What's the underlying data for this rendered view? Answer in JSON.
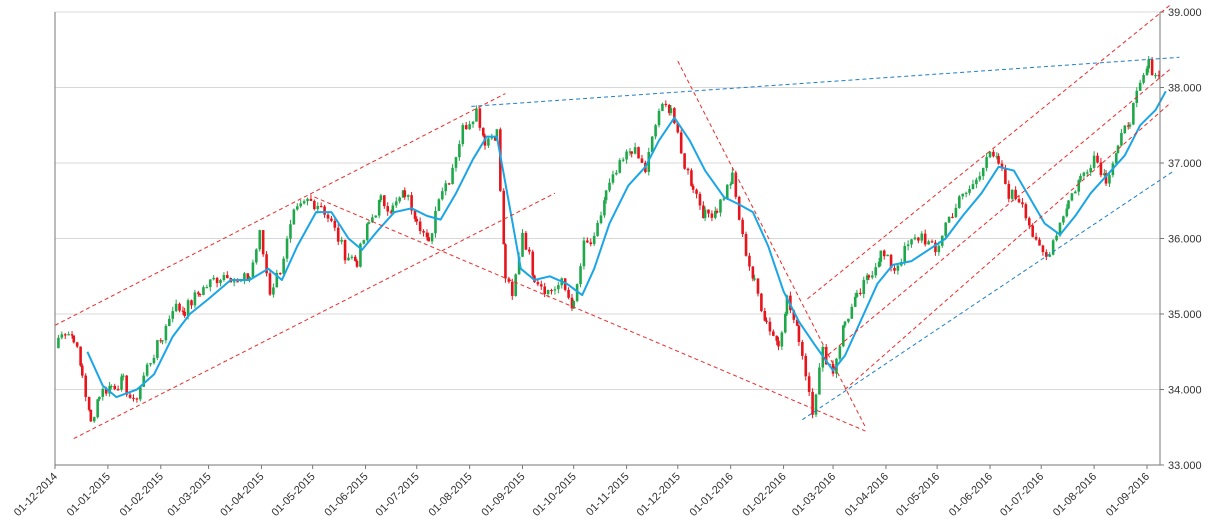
{
  "chart_data": {
    "type": "candlestick",
    "title": "",
    "xlabel": "",
    "ylabel": "",
    "ylim": [
      33.0,
      39.0
    ],
    "grid": "horizontal",
    "y_axis_side": "right",
    "x_ticks": [
      "01-12-2014",
      "01-01-2015",
      "01-02-2015",
      "01-03-2015",
      "01-04-2015",
      "01-05-2015",
      "01-06-2015",
      "01-07-2015",
      "01-08-2015",
      "01-09-2015",
      "01-10-2015",
      "01-11-2015",
      "01-12-2015",
      "01-01-2016",
      "01-02-2016",
      "01-03-2016",
      "01-04-2016",
      "01-05-2016",
      "01-06-2016",
      "01-07-2016",
      "01-08-2016",
      "01-09-2016"
    ],
    "y_ticks": [
      "33.000",
      "34.000",
      "35.000",
      "36.000",
      "37.000",
      "38.000",
      "39.000"
    ],
    "colors": {
      "up": "#1fa84a",
      "down": "#e8141b",
      "moving_average": "#1aa6e6",
      "red_trendline": "#ee2a2a",
      "blue_trendline": "#1e7fc8",
      "grid": "#d8d8d8",
      "axis": "#777777"
    },
    "price_path": [
      [
        "2014-12-01",
        34.55
      ],
      [
        "2014-12-05",
        34.8
      ],
      [
        "2014-12-12",
        34.7
      ],
      [
        "2014-12-17",
        34.2
      ],
      [
        "2014-12-22",
        33.55
      ],
      [
        "2014-12-27",
        33.95
      ],
      [
        "2015-01-03",
        34.05
      ],
      [
        "2015-01-10",
        34.1
      ],
      [
        "2015-01-16",
        33.8
      ],
      [
        "2015-01-24",
        34.3
      ],
      [
        "2015-02-02",
        34.7
      ],
      [
        "2015-02-08",
        35.1
      ],
      [
        "2015-02-15",
        35.05
      ],
      [
        "2015-02-24",
        35.3
      ],
      [
        "2015-03-04",
        35.45
      ],
      [
        "2015-03-12",
        35.55
      ],
      [
        "2015-03-18",
        35.4
      ],
      [
        "2015-03-25",
        35.5
      ],
      [
        "2015-03-31",
        36.05
      ],
      [
        "2015-04-06",
        35.3
      ],
      [
        "2015-04-12",
        35.6
      ],
      [
        "2015-04-20",
        36.3
      ],
      [
        "2015-04-28",
        36.5
      ],
      [
        "2015-05-06",
        36.45
      ],
      [
        "2015-05-12",
        36.2
      ],
      [
        "2015-05-20",
        35.8
      ],
      [
        "2015-05-27",
        35.7
      ],
      [
        "2015-06-03",
        36.2
      ],
      [
        "2015-06-10",
        36.5
      ],
      [
        "2015-06-17",
        36.4
      ],
      [
        "2015-06-24",
        36.6
      ],
      [
        "2015-07-01",
        36.3
      ],
      [
        "2015-07-08",
        35.9
      ],
      [
        "2015-07-14",
        36.6
      ],
      [
        "2015-07-20",
        36.8
      ],
      [
        "2015-07-28",
        37.45
      ],
      [
        "2015-08-05",
        37.7
      ],
      [
        "2015-08-10",
        37.3
      ],
      [
        "2015-08-17",
        37.4
      ],
      [
        "2015-08-22",
        35.5
      ],
      [
        "2015-08-26",
        35.2
      ],
      [
        "2015-09-01",
        36.1
      ],
      [
        "2015-09-08",
        35.5
      ],
      [
        "2015-09-16",
        35.3
      ],
      [
        "2015-09-24",
        35.4
      ],
      [
        "2015-10-01",
        35.1
      ],
      [
        "2015-10-07",
        35.9
      ],
      [
        "2015-10-13",
        35.95
      ],
      [
        "2015-10-20",
        36.6
      ],
      [
        "2015-10-28",
        36.95
      ],
      [
        "2015-11-04",
        37.2
      ],
      [
        "2015-11-12",
        36.9
      ],
      [
        "2015-11-20",
        37.7
      ],
      [
        "2015-11-27",
        37.75
      ],
      [
        "2015-12-03",
        37.1
      ],
      [
        "2015-12-10",
        36.7
      ],
      [
        "2015-12-17",
        36.3
      ],
      [
        "2015-12-24",
        36.4
      ],
      [
        "2016-01-02",
        36.8
      ],
      [
        "2016-01-08",
        36.0
      ],
      [
        "2016-01-15",
        35.4
      ],
      [
        "2016-01-22",
        34.9
      ],
      [
        "2016-01-29",
        34.6
      ],
      [
        "2016-02-03",
        35.2
      ],
      [
        "2016-02-10",
        34.7
      ],
      [
        "2016-02-18",
        33.75
      ],
      [
        "2016-02-24",
        34.5
      ],
      [
        "2016-03-01",
        34.25
      ],
      [
        "2016-03-08",
        34.9
      ],
      [
        "2016-03-15",
        35.2
      ],
      [
        "2016-03-22",
        35.5
      ],
      [
        "2016-03-29",
        35.8
      ],
      [
        "2016-04-06",
        35.6
      ],
      [
        "2016-04-14",
        35.9
      ],
      [
        "2016-04-22",
        36.05
      ],
      [
        "2016-04-30",
        35.8
      ],
      [
        "2016-05-06",
        36.2
      ],
      [
        "2016-05-14",
        36.5
      ],
      [
        "2016-05-22",
        36.7
      ],
      [
        "2016-05-30",
        37.1
      ],
      [
        "2016-06-06",
        37.0
      ],
      [
        "2016-06-12",
        36.6
      ],
      [
        "2016-06-20",
        36.5
      ],
      [
        "2016-06-28",
        35.9
      ],
      [
        "2016-07-04",
        35.75
      ],
      [
        "2016-07-10",
        36.1
      ],
      [
        "2016-07-17",
        36.5
      ],
      [
        "2016-07-24",
        36.8
      ],
      [
        "2016-08-01",
        37.1
      ],
      [
        "2016-08-08",
        36.8
      ],
      [
        "2016-08-15",
        37.2
      ],
      [
        "2016-08-22",
        37.6
      ],
      [
        "2016-08-28",
        38.0
      ],
      [
        "2016-09-02",
        38.3
      ],
      [
        "2016-09-08",
        38.15
      ]
    ],
    "moving_average": [
      [
        "2014-12-20",
        34.5
      ],
      [
        "2014-12-29",
        34.05
      ],
      [
        "2015-01-06",
        33.9
      ],
      [
        "2015-01-18",
        34.0
      ],
      [
        "2015-01-28",
        34.2
      ],
      [
        "2015-02-08",
        34.7
      ],
      [
        "2015-02-18",
        35.0
      ],
      [
        "2015-03-01",
        35.2
      ],
      [
        "2015-03-14",
        35.45
      ],
      [
        "2015-03-25",
        35.45
      ],
      [
        "2015-04-05",
        35.6
      ],
      [
        "2015-04-13",
        35.45
      ],
      [
        "2015-04-22",
        35.9
      ],
      [
        "2015-05-03",
        36.35
      ],
      [
        "2015-05-12",
        36.35
      ],
      [
        "2015-05-22",
        36.0
      ],
      [
        "2015-05-30",
        35.85
      ],
      [
        "2015-06-08",
        36.1
      ],
      [
        "2015-06-18",
        36.35
      ],
      [
        "2015-06-28",
        36.4
      ],
      [
        "2015-07-07",
        36.3
      ],
      [
        "2015-07-15",
        36.25
      ],
      [
        "2015-07-24",
        36.6
      ],
      [
        "2015-08-03",
        37.05
      ],
      [
        "2015-08-11",
        37.35
      ],
      [
        "2015-08-17",
        37.35
      ],
      [
        "2015-08-23",
        36.6
      ],
      [
        "2015-08-31",
        35.6
      ],
      [
        "2015-09-08",
        35.45
      ],
      [
        "2015-09-17",
        35.5
      ],
      [
        "2015-09-27",
        35.4
      ],
      [
        "2015-10-06",
        35.25
      ],
      [
        "2015-10-13",
        35.6
      ],
      [
        "2015-10-22",
        36.2
      ],
      [
        "2015-11-02",
        36.7
      ],
      [
        "2015-11-12",
        36.95
      ],
      [
        "2015-11-20",
        37.3
      ],
      [
        "2015-11-29",
        37.6
      ],
      [
        "2015-12-08",
        37.3
      ],
      [
        "2015-12-17",
        36.9
      ],
      [
        "2015-12-28",
        36.55
      ],
      [
        "2016-01-06",
        36.45
      ],
      [
        "2016-01-14",
        36.35
      ],
      [
        "2016-01-23",
        35.9
      ],
      [
        "2016-02-01",
        35.3
      ],
      [
        "2016-02-10",
        34.9
      ],
      [
        "2016-02-19",
        34.6
      ],
      [
        "2016-03-01",
        34.25
      ],
      [
        "2016-03-08",
        34.45
      ],
      [
        "2016-03-17",
        34.9
      ],
      [
        "2016-03-27",
        35.4
      ],
      [
        "2016-04-05",
        35.65
      ],
      [
        "2016-04-16",
        35.7
      ],
      [
        "2016-04-26",
        35.85
      ],
      [
        "2016-05-06",
        36.0
      ],
      [
        "2016-05-16",
        36.3
      ],
      [
        "2016-05-27",
        36.6
      ],
      [
        "2016-06-06",
        36.95
      ],
      [
        "2016-06-15",
        36.9
      ],
      [
        "2016-06-24",
        36.55
      ],
      [
        "2016-07-03",
        36.2
      ],
      [
        "2016-07-12",
        36.05
      ],
      [
        "2016-07-21",
        36.3
      ],
      [
        "2016-07-30",
        36.6
      ],
      [
        "2016-08-09",
        36.85
      ],
      [
        "2016-08-19",
        37.1
      ],
      [
        "2016-08-28",
        37.5
      ],
      [
        "2016-09-06",
        37.7
      ],
      [
        "2016-09-12",
        37.95
      ]
    ],
    "trendlines": [
      {
        "style": "red",
        "points": [
          [
            "2014-12-01",
            34.85
          ],
          [
            "2015-08-22",
            37.92
          ]
        ]
      },
      {
        "style": "red",
        "points": [
          [
            "2014-12-12",
            33.35
          ],
          [
            "2015-09-20",
            36.6
          ]
        ]
      },
      {
        "style": "red",
        "points": [
          [
            "2015-05-02",
            36.55
          ],
          [
            "2016-03-20",
            33.45
          ]
        ]
      },
      {
        "style": "red",
        "points": [
          [
            "2015-12-01",
            38.35
          ],
          [
            "2016-03-20",
            33.5
          ]
        ]
      },
      {
        "style": "red",
        "points": [
          [
            "2016-02-15",
            35.2
          ],
          [
            "2016-09-15",
            39.1
          ]
        ]
      },
      {
        "style": "red",
        "points": [
          [
            "2016-02-24",
            34.4
          ],
          [
            "2016-09-15",
            38.25
          ]
        ]
      },
      {
        "style": "red",
        "points": [
          [
            "2016-03-08",
            34.0
          ],
          [
            "2016-09-15",
            37.8
          ]
        ]
      },
      {
        "style": "blue",
        "points": [
          [
            "2015-08-02",
            37.75
          ],
          [
            "2016-09-20",
            38.4
          ]
        ]
      },
      {
        "style": "blue",
        "points": [
          [
            "2016-02-12",
            33.6
          ],
          [
            "2016-09-17",
            36.9
          ]
        ]
      }
    ]
  }
}
